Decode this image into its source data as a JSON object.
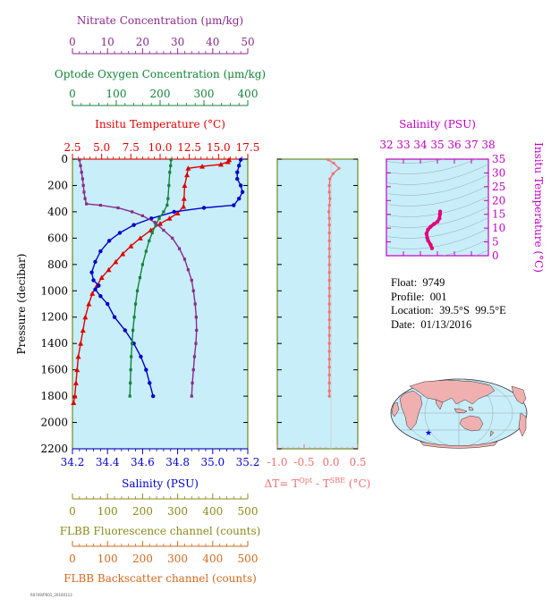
{
  "chart_data": [
    {
      "type": "line",
      "title": "",
      "ylabel": "Pressure (decibar)",
      "ylim": [
        2200,
        0
      ],
      "yticks": [
        0,
        200,
        400,
        600,
        800,
        1000,
        1200,
        1400,
        1600,
        1800,
        2000,
        2200
      ],
      "axes": {
        "nitrate": {
          "label": "Nitrate Concentration (μm/kg)",
          "range": [
            0,
            50
          ],
          "ticks": [
            0,
            10,
            20,
            30,
            40,
            50
          ],
          "color": "#8b2a8b"
        },
        "oxygen": {
          "label": "Optode Oxygen Concentration (μm/kg)",
          "range": [
            0,
            400
          ],
          "ticks": [
            0,
            100,
            200,
            300,
            400
          ],
          "color": "#14823a"
        },
        "temperature": {
          "label": "Insitu Temperature (°C)",
          "range": [
            2.5,
            17.5
          ],
          "ticks": [
            "2.5",
            "5.0",
            "7.5",
            "10.0",
            "12.5",
            "15.0",
            "17.5"
          ],
          "color": "#e00000"
        },
        "salinity": {
          "label": "Salinity (PSU)",
          "range": [
            34.2,
            35.2
          ],
          "ticks": [
            "34.2",
            "34.4",
            "34.6",
            "34.8",
            "35.0",
            "35.2"
          ],
          "color": "#0000cc"
        },
        "fluorescence": {
          "label": "FLBB Fluorescence channel (counts)",
          "range": [
            0,
            500
          ],
          "ticks": [
            0,
            100,
            200,
            300,
            400,
            500
          ],
          "color": "#8a8a1a"
        },
        "backscatter": {
          "label": "FLBB Backscatter channel (counts)",
          "range": [
            0,
            500
          ],
          "ticks": [
            0,
            100,
            200,
            300,
            400,
            500
          ],
          "color": "#d2691e"
        }
      },
      "series": [
        {
          "name": "Insitu Temperature",
          "axis": "temperature",
          "marker": "triangle",
          "points": [
            [
              15.9,
              5
            ],
            [
              15.8,
              20
            ],
            [
              15.2,
              40
            ],
            [
              13.6,
              55
            ],
            [
              12.4,
              70
            ],
            [
              12.3,
              120
            ],
            [
              12.1,
              200
            ],
            [
              12.05,
              300
            ],
            [
              12.0,
              360
            ],
            [
              11.5,
              410
            ],
            [
              10.8,
              450
            ],
            [
              10.0,
              490
            ],
            [
              9.2,
              540
            ],
            [
              8.3,
              600
            ],
            [
              7.5,
              660
            ],
            [
              6.8,
              720
            ],
            [
              6.2,
              780
            ],
            [
              5.6,
              840
            ],
            [
              5.0,
              900
            ],
            [
              4.6,
              960
            ],
            [
              4.2,
              1020
            ],
            [
              3.9,
              1100
            ],
            [
              3.6,
              1200
            ],
            [
              3.4,
              1300
            ],
            [
              3.2,
              1400
            ],
            [
              3.0,
              1500
            ],
            [
              2.9,
              1600
            ],
            [
              2.8,
              1700
            ],
            [
              2.7,
              1800
            ],
            [
              2.6,
              1850
            ]
          ]
        },
        {
          "name": "Salinity",
          "axis": "salinity",
          "marker": "circle",
          "points": [
            [
              35.16,
              5
            ],
            [
              35.15,
              50
            ],
            [
              35.14,
              100
            ],
            [
              35.14,
              150
            ],
            [
              35.16,
              200
            ],
            [
              35.17,
              250
            ],
            [
              35.15,
              300
            ],
            [
              35.12,
              350
            ],
            [
              34.95,
              370
            ],
            [
              34.78,
              400
            ],
            [
              34.65,
              450
            ],
            [
              34.55,
              500
            ],
            [
              34.47,
              560
            ],
            [
              34.41,
              620
            ],
            [
              34.36,
              700
            ],
            [
              34.33,
              780
            ],
            [
              34.31,
              860
            ],
            [
              34.32,
              920
            ],
            [
              34.35,
              960
            ],
            [
              34.33,
              990
            ],
            [
              34.36,
              1040
            ],
            [
              34.4,
              1100
            ],
            [
              34.44,
              1200
            ],
            [
              34.5,
              1300
            ],
            [
              34.55,
              1400
            ],
            [
              34.59,
              1500
            ],
            [
              34.62,
              1600
            ],
            [
              34.64,
              1700
            ],
            [
              34.66,
              1800
            ]
          ]
        },
        {
          "name": "Optode Oxygen Concentration",
          "axis": "oxygen",
          "marker": "square",
          "points": [
            [
              225,
              5
            ],
            [
              224,
              50
            ],
            [
              222,
              100
            ],
            [
              220,
              200
            ],
            [
              218,
              300
            ],
            [
              216,
              350
            ],
            [
              208,
              400
            ],
            [
              198,
              450
            ],
            [
              190,
              500
            ],
            [
              182,
              560
            ],
            [
              175,
              620
            ],
            [
              168,
              700
            ],
            [
              160,
              800
            ],
            [
              154,
              900
            ],
            [
              148,
              1000
            ],
            [
              144,
              1100
            ],
            [
              141,
              1200
            ],
            [
              138,
              1300
            ],
            [
              136,
              1400
            ],
            [
              134,
              1500
            ],
            [
              133,
              1600
            ],
            [
              132,
              1700
            ],
            [
              131,
              1800
            ]
          ]
        },
        {
          "name": "Nitrate Concentration",
          "axis": "nitrate",
          "marker": "square",
          "points": [
            [
              2.0,
              5
            ],
            [
              2.3,
              50
            ],
            [
              2.6,
              100
            ],
            [
              2.9,
              150
            ],
            [
              3.1,
              200
            ],
            [
              3.3,
              250
            ],
            [
              3.6,
              300
            ],
            [
              4.0,
              340
            ],
            [
              8.0,
              350
            ],
            [
              13.0,
              370
            ],
            [
              17.0,
              400
            ],
            [
              20.0,
              430
            ],
            [
              23.5,
              480
            ],
            [
              26.0,
              540
            ],
            [
              28.5,
              600
            ],
            [
              30.5,
              680
            ],
            [
              32.0,
              760
            ],
            [
              33.0,
              840
            ],
            [
              34.0,
              920
            ],
            [
              34.5,
              1000
            ],
            [
              35.0,
              1100
            ],
            [
              35.3,
              1200
            ],
            [
              35.4,
              1300
            ],
            [
              35.2,
              1400
            ],
            [
              34.8,
              1500
            ],
            [
              34.5,
              1600
            ],
            [
              34.2,
              1700
            ],
            [
              34.0,
              1800
            ]
          ]
        }
      ]
    },
    {
      "type": "line",
      "xlabel": "ΔT= T^Opt - T^SBE (°C)",
      "xlabel_parts": {
        "pre": "ΔT= T",
        "sup1": "Opt",
        "mid": " - T",
        "sup2": "SBE",
        "post": " (°C)"
      },
      "xlim": [
        -1.0,
        0.5
      ],
      "xticks": [
        "-1.0",
        "-0.5",
        "0.0",
        "0.5"
      ],
      "ylim": [
        2200,
        0
      ],
      "series": [
        {
          "name": "ΔT",
          "color": "#f07070",
          "points": [
            [
              -0.05,
              5
            ],
            [
              0.05,
              30
            ],
            [
              0.15,
              70
            ],
            [
              0.04,
              110
            ],
            [
              -0.02,
              150
            ],
            [
              -0.03,
              200
            ],
            [
              -0.03,
              250
            ],
            [
              -0.02,
              300
            ],
            [
              -0.03,
              350
            ],
            [
              -0.04,
              400
            ],
            [
              -0.03,
              450
            ],
            [
              -0.03,
              500
            ],
            [
              -0.03,
              560
            ],
            [
              -0.03,
              620
            ],
            [
              -0.03,
              680
            ],
            [
              -0.03,
              740
            ],
            [
              -0.03,
              800
            ],
            [
              -0.03,
              860
            ],
            [
              -0.03,
              920
            ],
            [
              -0.03,
              980
            ],
            [
              -0.03,
              1040
            ],
            [
              -0.03,
              1100
            ],
            [
              -0.03,
              1160
            ],
            [
              -0.03,
              1220
            ],
            [
              -0.03,
              1280
            ],
            [
              -0.03,
              1340
            ],
            [
              -0.03,
              1400
            ],
            [
              -0.03,
              1460
            ],
            [
              -0.03,
              1520
            ],
            [
              -0.03,
              1580
            ],
            [
              -0.03,
              1640
            ],
            [
              -0.03,
              1700
            ],
            [
              -0.03,
              1760
            ],
            [
              -0.03,
              1800
            ]
          ]
        }
      ]
    },
    {
      "type": "scatter",
      "title": "Salinity (PSU)",
      "xlabel": "Salinity (PSU)",
      "ylabel": "Insitu Temperature (°C)",
      "xlim": [
        32,
        38
      ],
      "ylim": [
        0,
        35
      ],
      "xticks": [
        32,
        33,
        34,
        35,
        36,
        37,
        38
      ],
      "yticks": [
        0,
        5,
        10,
        15,
        20,
        25,
        30,
        35
      ],
      "color": "#e0007a",
      "points": [
        [
          34.68,
          2.7
        ],
        [
          34.6,
          4.0
        ],
        [
          34.45,
          5.5
        ],
        [
          34.4,
          6.5
        ],
        [
          34.36,
          8.0
        ],
        [
          34.45,
          9.5
        ],
        [
          34.6,
          10.5
        ],
        [
          34.8,
          11.5
        ],
        [
          35.0,
          12.3
        ],
        [
          35.12,
          13.5
        ],
        [
          35.15,
          15.0
        ],
        [
          35.16,
          16.0
        ]
      ]
    }
  ],
  "info": {
    "float": "Float:  9749",
    "profile": "Profile:  001",
    "location": "Location:  39.5°S  99.5°E",
    "date": "Date:  01/13/2016"
  },
  "footer_note": "R9749/P001_20160113",
  "map": {
    "marker_color": "#0000ff",
    "land_color": "#f0b0b0",
    "ocean_color": "#c8eefa"
  },
  "colors": {
    "panel_bg": "#c8eefa",
    "frame": "#6b8e23"
  }
}
